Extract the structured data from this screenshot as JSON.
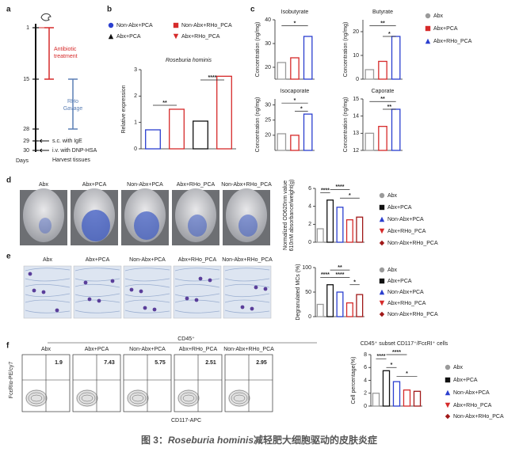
{
  "panel_letters": [
    "a",
    "b",
    "c",
    "d",
    "e",
    "f"
  ],
  "timeline": {
    "days": [
      1,
      15,
      28,
      29,
      30
    ],
    "axis_label": "Days",
    "antibiotic": [
      "Antibiotic",
      "treatment"
    ],
    "gavage": [
      "RHo",
      "Gavage"
    ],
    "events": [
      "s.c. with IgE",
      "i.v. with DNP-HSA",
      "Harvest tissues"
    ]
  },
  "photos_d": [
    "Abx",
    "Abx+PCA",
    "Non-Abx+PCA",
    "Abx+RHo_PCA",
    "Non-Abx+RHo_PCA"
  ],
  "photos_e": [
    "Abx",
    "Abx+PCA",
    "Non-Abx+PCA",
    "Abx+RHo_PCA",
    "Non-Abx+RHo_PCA"
  ],
  "flow": {
    "header": "CD45⁺",
    "y_label": "FcεRIα-PE/cy7",
    "x_label": "CD117-APC",
    "plots": [
      {
        "name": "Abx",
        "value": 1.9
      },
      {
        "name": "Abx+PCA",
        "value": 7.43
      },
      {
        "name": "Non-Abx+PCA",
        "value": 5.75
      },
      {
        "name": "Abx+RHo_PCA",
        "value": 2.51
      },
      {
        "name": "Non-Abx+RHo_PCA",
        "value": 2.95
      }
    ]
  },
  "caption": {
    "prefix": "图 3：",
    "species": "Roseburia hominis",
    "rest": "减轻肥大细胞驱动的皮肤炎症"
  },
  "chart_data": [
    {
      "type": "bar",
      "title": "Roseburia hominis",
      "ylabel": "Relative expression",
      "categories": [
        null
      ],
      "ylim": [
        0,
        3
      ],
      "yticks": [
        0,
        1,
        2,
        3
      ],
      "annotations": [
        "**",
        "****"
      ],
      "series": [
        {
          "name": "Non-Abx+PCA",
          "color": "#2b3fcf",
          "marker": "circle",
          "values": [
            0.72
          ]
        },
        {
          "name": "Non-Abx+RHo_PCA",
          "color": "#d62a2a",
          "marker": "square",
          "values": [
            1.5
          ]
        },
        {
          "name": "Abx+PCA",
          "color": "#111111",
          "marker": "triangle",
          "values": [
            1.05
          ]
        },
        {
          "name": "Abx+RHo_PCA",
          "color": "#d62a2a",
          "marker": "triangle-down",
          "values": [
            2.75
          ]
        }
      ]
    },
    {
      "type": "bar",
      "ylabel": "Concentration (ng/mg)",
      "categories": [
        "Isobutyrate",
        "Butyrate",
        "Isocaporate",
        "Caporate"
      ],
      "panels": [
        {
          "ylim": [
            15,
            40
          ],
          "yticks": [
            20,
            30,
            40
          ],
          "annotations": [
            "*"
          ]
        },
        {
          "ylim": [
            0,
            25
          ],
          "yticks": [
            0,
            10,
            20
          ],
          "annotations": [
            "**",
            "*"
          ]
        },
        {
          "ylim": [
            15,
            32
          ],
          "yticks": [
            20,
            25,
            30
          ],
          "annotations": [
            "*",
            "*"
          ]
        },
        {
          "ylim": [
            12,
            15
          ],
          "yticks": [
            12,
            13,
            14,
            15
          ],
          "annotations": [
            "**",
            "**"
          ]
        }
      ],
      "series": [
        {
          "name": "Abx",
          "color": "#9a9a9a",
          "marker": "circle",
          "values": [
            22,
            4,
            20.5,
            13
          ]
        },
        {
          "name": "Abx+PCA",
          "color": "#d62a2a",
          "marker": "square",
          "values": [
            24,
            7.5,
            20,
            13.4
          ]
        },
        {
          "name": "Abx+RHo_PCA",
          "color": "#2b3fcf",
          "marker": "triangle",
          "values": [
            33,
            18,
            27,
            14.4
          ]
        }
      ]
    },
    {
      "type": "bar",
      "ylabel": [
        "Normalized OD620nm value",
        "610nM absorbance/weight(g)"
      ],
      "categories": [
        null
      ],
      "ylim": [
        0,
        6
      ],
      "yticks": [
        0,
        2,
        4,
        6
      ],
      "annotations": [
        "****",
        "****",
        "*"
      ],
      "series": [
        {
          "name": "Abx",
          "color": "#9a9a9a",
          "marker": "circle",
          "values": [
            1.5
          ]
        },
        {
          "name": "Abx+PCA",
          "color": "#111111",
          "marker": "square",
          "values": [
            4.7
          ]
        },
        {
          "name": "Non-Abx+PCA",
          "color": "#2b3fcf",
          "marker": "triangle",
          "values": [
            3.9
          ]
        },
        {
          "name": "Abx+RHo_PCA",
          "color": "#d62a2a",
          "marker": "triangle-down",
          "values": [
            2.5
          ]
        },
        {
          "name": "Non-Abx+RHo_PCA",
          "color": "#a01818",
          "marker": "diamond",
          "values": [
            2.8
          ]
        }
      ]
    },
    {
      "type": "bar",
      "ylabel": "Degranulated MCs (%)",
      "categories": [
        null
      ],
      "ylim": [
        0,
        100
      ],
      "yticks": [
        0,
        50,
        100
      ],
      "annotations": [
        "**",
        "****",
        "****",
        "*"
      ],
      "series": [
        {
          "name": "Abx",
          "color": "#9a9a9a",
          "marker": "circle",
          "values": [
            25
          ]
        },
        {
          "name": "Abx+PCA",
          "color": "#111111",
          "marker": "square",
          "values": [
            65
          ]
        },
        {
          "name": "Non-Abx+PCA",
          "color": "#2b3fcf",
          "marker": "triangle",
          "values": [
            50
          ]
        },
        {
          "name": "Abx+RHo_PCA",
          "color": "#d62a2a",
          "marker": "triangle-down",
          "values": [
            28
          ]
        },
        {
          "name": "Non-Abx+RHo_PCA",
          "color": "#a01818",
          "marker": "diamond",
          "values": [
            45
          ]
        }
      ]
    },
    {
      "type": "bar",
      "title": "CD45⁺ subset CD117⁺/FcεRI⁺ cells",
      "ylabel": "Cell percentage(%)",
      "categories": [
        null
      ],
      "ylim": [
        0,
        8
      ],
      "yticks": [
        0,
        2,
        4,
        6,
        8
      ],
      "annotations": [
        "****",
        "****",
        "*",
        "*"
      ],
      "series": [
        {
          "name": "Abx",
          "color": "#9a9a9a",
          "marker": "circle",
          "values": [
            2
          ]
        },
        {
          "name": "Abx+PCA",
          "color": "#111111",
          "marker": "square",
          "values": [
            5.5
          ]
        },
        {
          "name": "Non-Abx+PCA",
          "color": "#2b3fcf",
          "marker": "triangle",
          "values": [
            3.8
          ]
        },
        {
          "name": "Abx+RHo_PCA",
          "color": "#d62a2a",
          "marker": "triangle-down",
          "values": [
            2.5
          ]
        },
        {
          "name": "Non-Abx+RHo_PCA",
          "color": "#a01818",
          "marker": "diamond",
          "values": [
            2.3
          ]
        }
      ]
    }
  ]
}
